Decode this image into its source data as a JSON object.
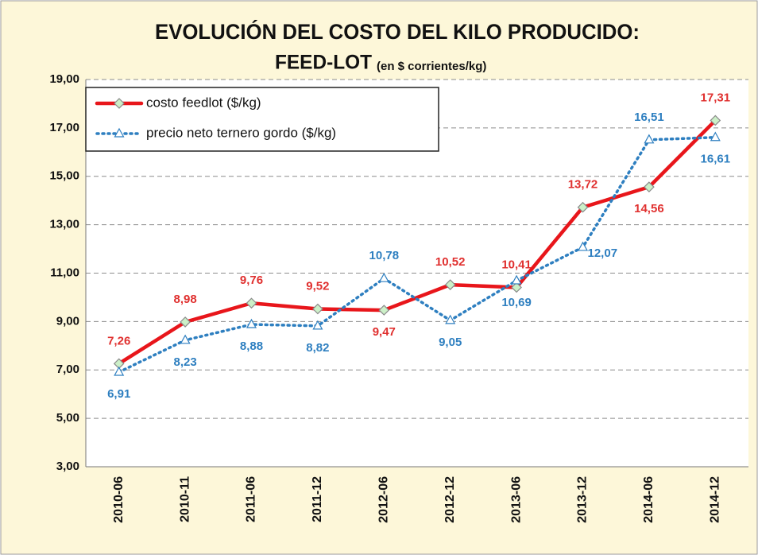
{
  "chart_data": {
    "type": "line",
    "title": "EVOLUCIÓN DEL COSTO DEL KILO PRODUCIDO:",
    "title_line2": "FEED-LOT",
    "subtitle": "(en $ corrientes/kg)",
    "categories": [
      "2010-06",
      "2010-11",
      "2011-06",
      "2011-12",
      "2012-06",
      "2012-12",
      "2013-06",
      "2013-12",
      "2014-06",
      "2014-12"
    ],
    "series": [
      {
        "name": "costo feedlot ($/kg)",
        "color": "#e8161b",
        "values": [
          7.26,
          8.98,
          9.76,
          9.52,
          9.47,
          10.52,
          10.41,
          13.72,
          14.56,
          17.31
        ],
        "value_labels": [
          "7,26",
          "8,98",
          "9,76",
          "9,52",
          "9,47",
          "10,52",
          "10,41",
          "13,72",
          "14,56",
          "17,31"
        ]
      },
      {
        "name": "precio neto ternero gordo ($/kg)",
        "color": "#2e7fc0",
        "values": [
          6.91,
          8.23,
          8.88,
          8.82,
          10.78,
          9.05,
          10.69,
          12.07,
          16.51,
          16.61
        ],
        "value_labels": [
          "6,91",
          "8,23",
          "8,88",
          "8,82",
          "10,78",
          "9,05",
          "10,69",
          "12,07",
          "16,51",
          "16,61"
        ]
      }
    ],
    "ylim": [
      3,
      19
    ],
    "yticks": [
      {
        "value": 3,
        "label": "3,00"
      },
      {
        "value": 5,
        "label": "5,00"
      },
      {
        "value": 7,
        "label": "7,00"
      },
      {
        "value": 9,
        "label": "9,00"
      },
      {
        "value": 11,
        "label": "11,00"
      },
      {
        "value": 13,
        "label": "13,00"
      },
      {
        "value": 15,
        "label": "15,00"
      },
      {
        "value": 17,
        "label": "17,00"
      },
      {
        "value": 19,
        "label": "19,00"
      }
    ],
    "grid": true,
    "legend": "top-left"
  }
}
